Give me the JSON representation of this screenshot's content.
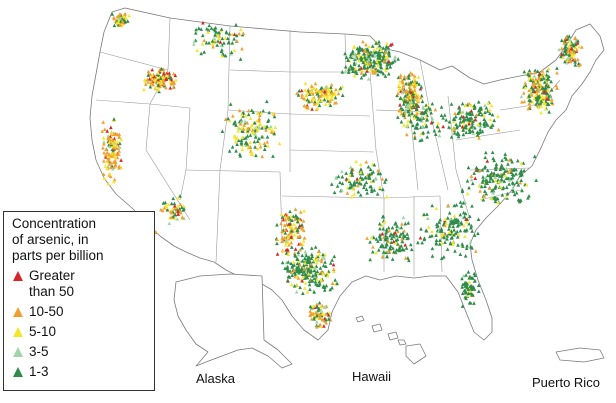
{
  "legend": {
    "title": "Concentration\nof arsenic, in\nparts per billion",
    "items": [
      {
        "label": "Greater\nthan 50",
        "color": "#d62728"
      },
      {
        "label": "10-50",
        "color": "#f0a030"
      },
      {
        "label": "5-10",
        "color": "#f5e62a"
      },
      {
        "label": "3-5",
        "color": "#9fd6a8"
      },
      {
        "label": "1-3",
        "color": "#2e8b4a"
      }
    ]
  },
  "labels": {
    "alaska": "Alaska",
    "hawaii": "Hawaii",
    "puerto_rico": "Puerto Rico"
  }
}
